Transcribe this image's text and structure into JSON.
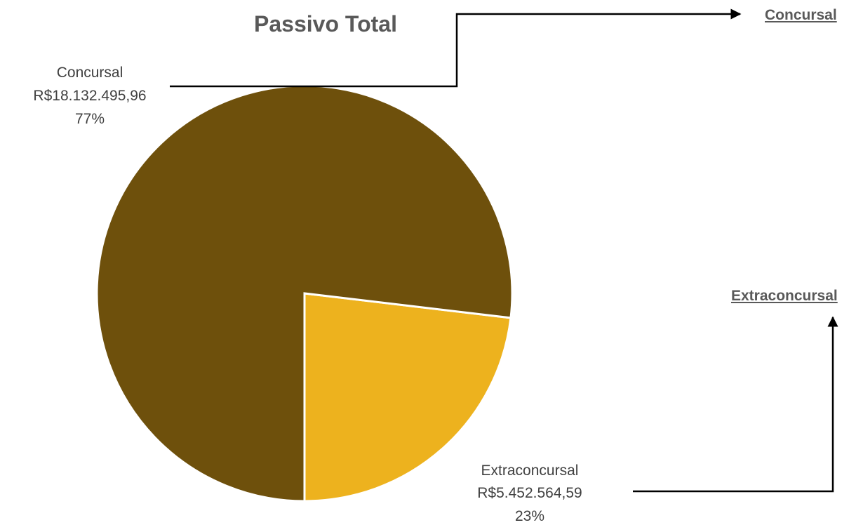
{
  "chart_data": {
    "type": "pie",
    "title": "Passivo Total",
    "slices": [
      {
        "name": "Concursal",
        "value_label": "R$18.132.495,96",
        "value": 18132495.96,
        "percent_label": "77%",
        "color": "#6E500C"
      },
      {
        "name": "Extraconcursal",
        "value_label": "R$5.452.564,59",
        "value": 5452564.59,
        "percent_label": "23%",
        "color": "#EDB21E"
      }
    ]
  },
  "links": {
    "concursal": "Concursal",
    "extraconcursal": "Extraconcursal"
  }
}
